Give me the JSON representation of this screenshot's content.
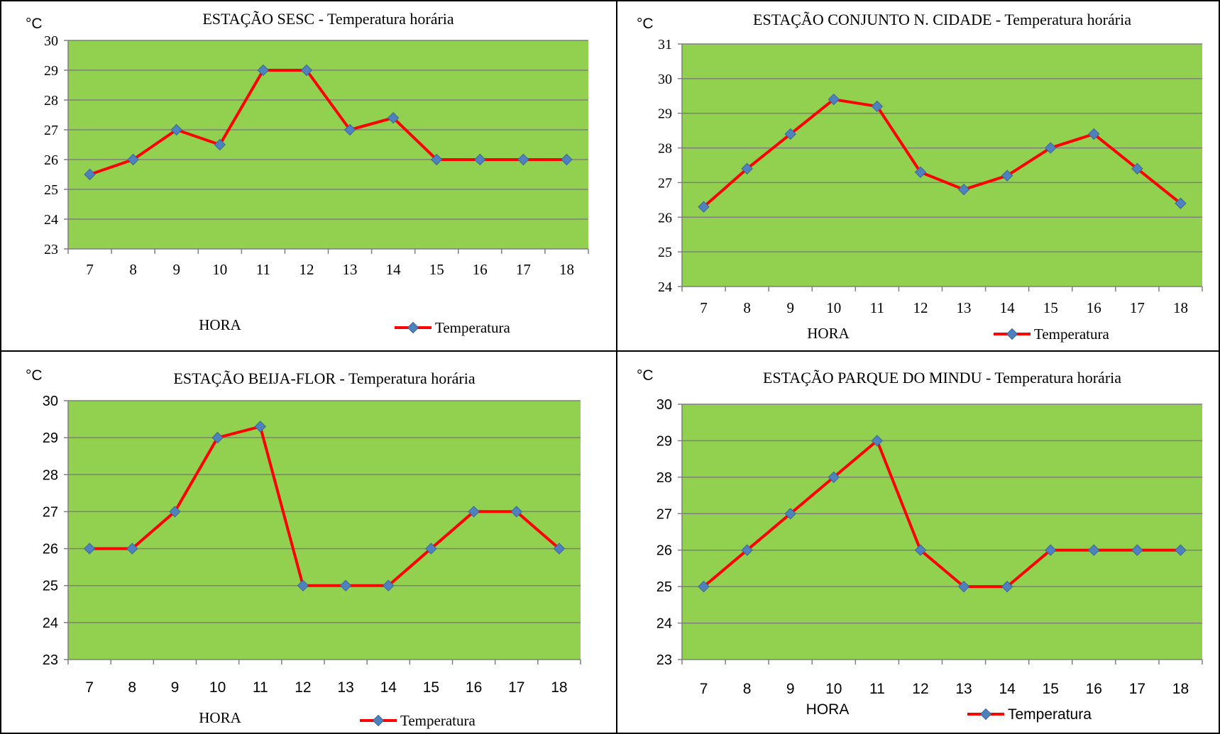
{
  "chart_data": [
    {
      "type": "line",
      "title": "ESTAÇÃO SESC - Temperatura horária",
      "ylabel": "°C",
      "xlabel": "HORA",
      "categories": [
        "7",
        "8",
        "9",
        "10",
        "11",
        "12",
        "13",
        "14",
        "15",
        "16",
        "17",
        "18"
      ],
      "series": [
        {
          "name": "Temperatura",
          "values": [
            25.5,
            26,
            27,
            26.5,
            29,
            29,
            27,
            27.4,
            26,
            26,
            26,
            26
          ]
        }
      ],
      "ylim": [
        23,
        30
      ],
      "grid": true,
      "legend": "bottom-right",
      "title_font": "Liberation Serif",
      "colors": {
        "plot_bg": "#92D050",
        "line": "#FF0000",
        "marker": "#4F81BD"
      }
    },
    {
      "type": "line",
      "title": "ESTAÇÃO CONJUNTO N. CIDADE - Temperatura horária",
      "ylabel": "°C",
      "xlabel": "HORA",
      "categories": [
        "7",
        "8",
        "9",
        "10",
        "11",
        "12",
        "13",
        "14",
        "15",
        "16",
        "17",
        "18"
      ],
      "series": [
        {
          "name": "Temperatura",
          "values": [
            26.3,
            27.4,
            28.4,
            29.4,
            29.2,
            27.3,
            26.8,
            27.2,
            28,
            28.4,
            27.4,
            26.4
          ]
        }
      ],
      "ylim": [
        24,
        31
      ],
      "grid": true,
      "legend": "bottom-right",
      "colors": {
        "plot_bg": "#92D050",
        "line": "#FF0000",
        "marker": "#4F81BD"
      }
    },
    {
      "type": "line",
      "title": "ESTAÇÃO BEIJA-FLOR - Temperatura horária",
      "ylabel": "°C",
      "xlabel": "HORA",
      "categories": [
        "7",
        "8",
        "9",
        "10",
        "11",
        "12",
        "13",
        "14",
        "15",
        "16",
        "17",
        "18"
      ],
      "series": [
        {
          "name": "Temperatura",
          "values": [
            26,
            26,
            27,
            29,
            29.3,
            25,
            25,
            25,
            26,
            27,
            27,
            26
          ]
        }
      ],
      "ylim": [
        23,
        30
      ],
      "grid": true,
      "legend": "bottom-right",
      "colors": {
        "plot_bg": "#92D050",
        "line": "#FF0000",
        "marker": "#4F81BD"
      }
    },
    {
      "type": "line",
      "title": "ESTAÇÃO PARQUE DO MINDU - Temperatura horária",
      "ylabel": "°C",
      "xlabel": "HORA",
      "categories": [
        "7",
        "8",
        "9",
        "10",
        "11",
        "12",
        "13",
        "14",
        "15",
        "16",
        "17",
        "18"
      ],
      "series": [
        {
          "name": "Temperatura",
          "values": [
            25,
            26,
            27,
            28,
            29,
            26,
            25,
            25,
            26,
            26,
            26,
            26
          ]
        }
      ],
      "ylim": [
        23,
        30
      ],
      "grid": true,
      "legend": "bottom-right",
      "colors": {
        "plot_bg": "#92D050",
        "line": "#FF0000",
        "marker": "#4F81BD"
      }
    }
  ]
}
